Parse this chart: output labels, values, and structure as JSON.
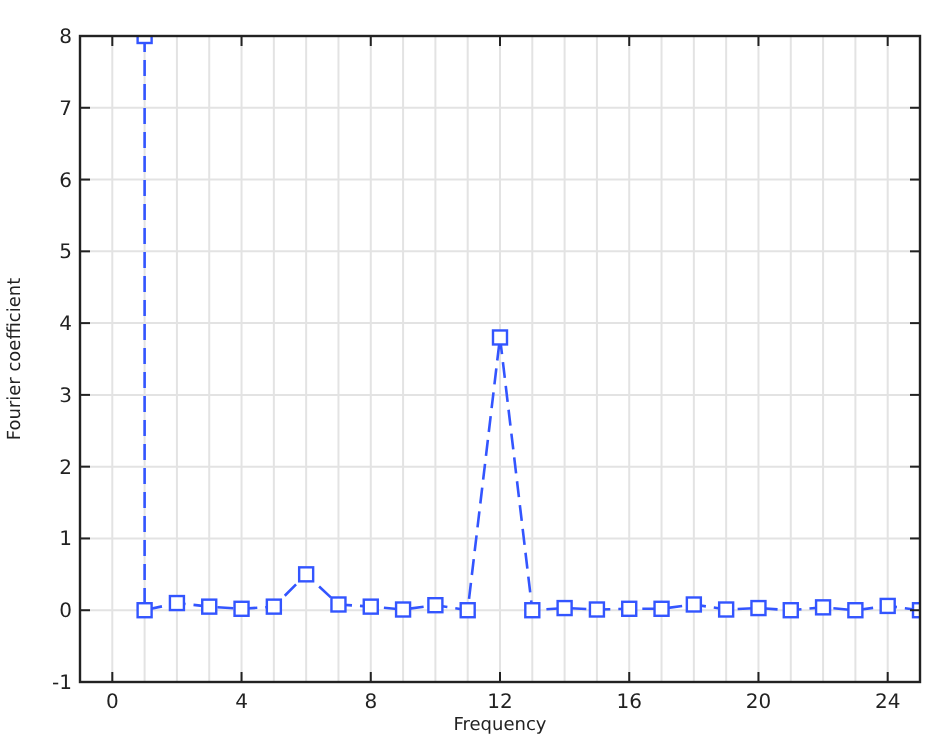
{
  "chart_data": {
    "type": "line",
    "xlabel": "Frequency",
    "ylabel": "Fourier coefficient",
    "xlim": [
      -1,
      25
    ],
    "ylim": [
      -1,
      8
    ],
    "xticks": [
      0,
      {
        "value": 1,
        "label": null
      },
      {
        "value": 2,
        "label": null
      },
      {
        "value": 3,
        "label": null
      },
      4,
      {
        "value": 5,
        "label": null
      },
      {
        "value": 6,
        "label": null
      },
      {
        "value": 7,
        "label": null
      },
      8,
      {
        "value": 9,
        "label": null
      },
      {
        "value": 10,
        "label": null
      },
      {
        "value": 11,
        "label": null
      },
      12,
      {
        "value": 13,
        "label": null
      },
      {
        "value": 14,
        "label": null
      },
      {
        "value": 15,
        "label": null
      },
      16,
      {
        "value": 17,
        "label": null
      },
      {
        "value": 18,
        "label": null
      },
      {
        "value": 19,
        "label": null
      },
      20,
      {
        "value": 21,
        "label": null
      },
      {
        "value": 22,
        "label": null
      },
      {
        "value": 23,
        "label": null
      },
      24
    ],
    "yticks": [
      -1,
      0,
      1,
      2,
      3,
      4,
      5,
      6,
      7,
      8
    ],
    "grid": true,
    "marker": "square",
    "line_style": "dashed",
    "series": [
      {
        "color": "#3355ff",
        "x": [
          1,
          1,
          2,
          3,
          4,
          5,
          6,
          7,
          8,
          9,
          10,
          11,
          12,
          13,
          14,
          15,
          16,
          17,
          18,
          19,
          20,
          21,
          22,
          23,
          24,
          25
        ],
        "values": [
          8,
          0,
          0.1,
          0.05,
          0.02,
          0.05,
          0.5,
          0.08,
          0.05,
          0.01,
          0.07,
          0,
          3.8,
          0,
          0.03,
          0.01,
          0.02,
          0.02,
          0.08,
          0.01,
          0.03,
          0,
          0.04,
          0,
          0.06,
          0
        ]
      }
    ]
  }
}
